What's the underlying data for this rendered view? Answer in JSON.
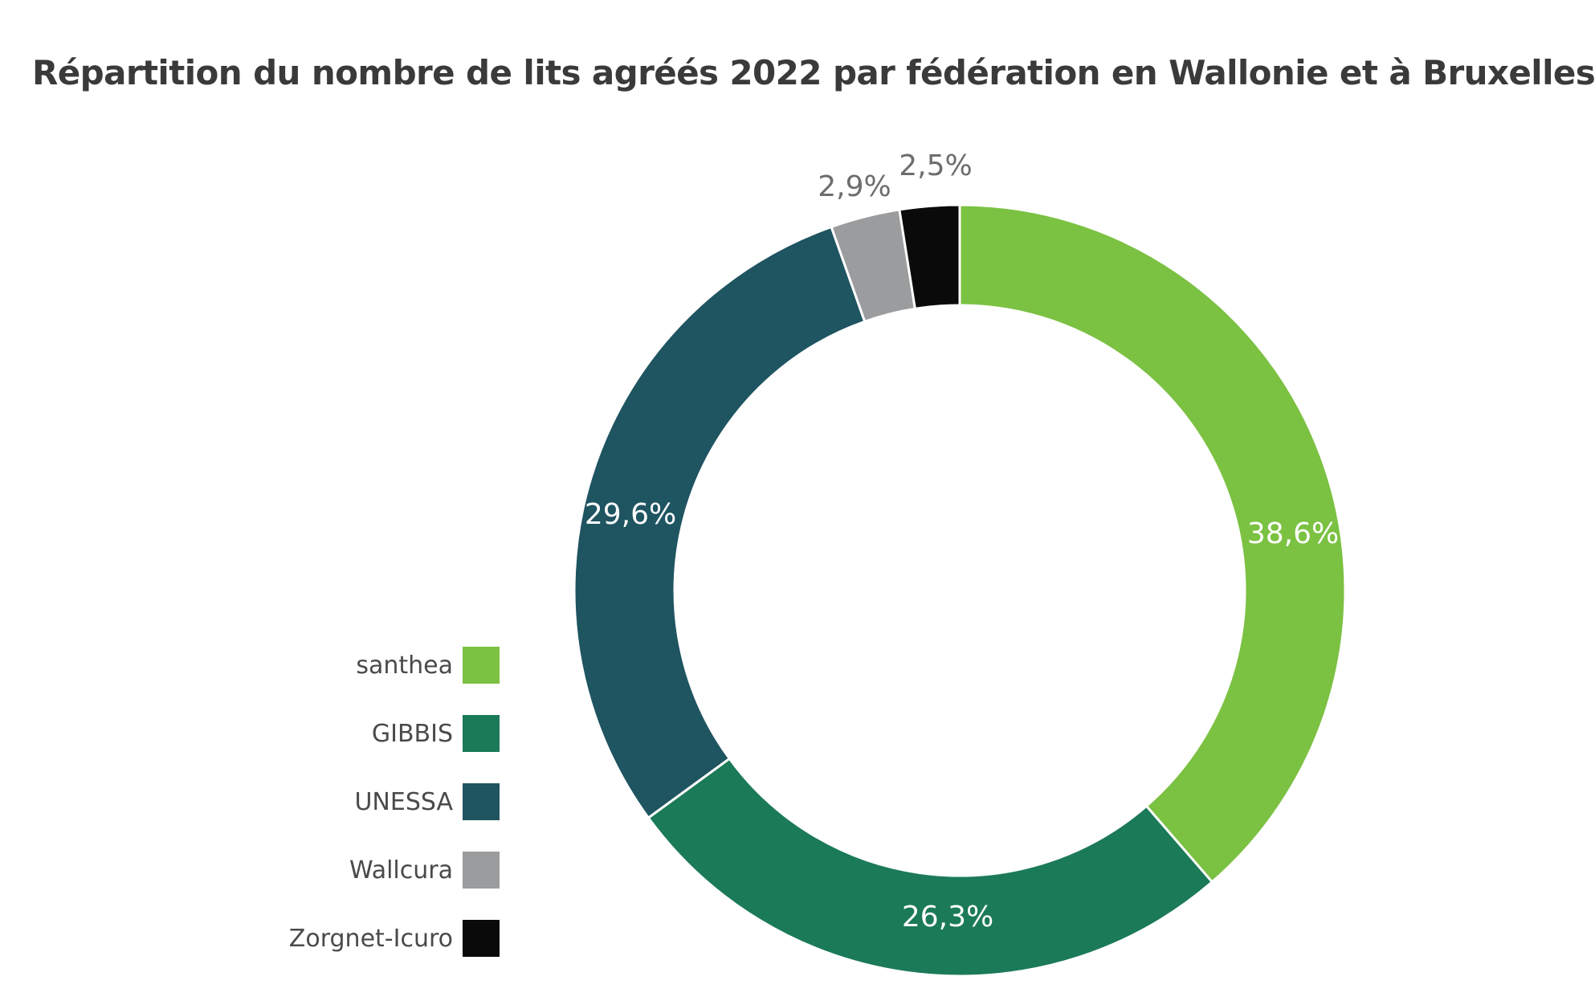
{
  "chart_data": {
    "type": "pie",
    "donut": true,
    "title": "Répartition du nombre de lits agréés 2022 par fédération en Wallonie et à Bruxelles",
    "categories": [
      "santhea",
      "GIBBIS",
      "UNESSA",
      "Wallcura",
      "Zorgnet-Icuro"
    ],
    "values": [
      38.6,
      26.3,
      29.6,
      2.9,
      2.5
    ],
    "value_labels": [
      "38,6%",
      "26,3%",
      "29,6%",
      "2,9%",
      "2,5%"
    ],
    "colors": [
      "#7bc142",
      "#1b7a57",
      "#1f5461",
      "#9a9c9d",
      "#0a0a0a"
    ],
    "label_colors": [
      "#ffffff",
      "#ffffff",
      "#ffffff",
      "#6d6d6d",
      "#6d6d6d"
    ],
    "legend_position": "bottom-left",
    "start": "top",
    "direction": "clockwise"
  }
}
